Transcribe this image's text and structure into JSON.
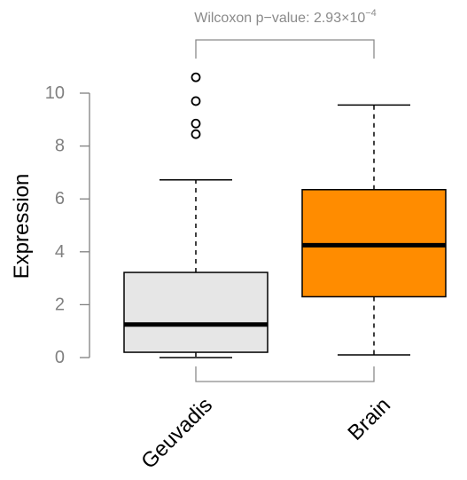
{
  "chart_data": {
    "type": "boxplot",
    "ylabel": "Expression",
    "ylim": [
      0,
      10.6
    ],
    "yticks": [
      0,
      2,
      4,
      6,
      8,
      10
    ],
    "categories": [
      "Geuvadis",
      "Brain"
    ],
    "boxes": [
      {
        "category": "Geuvadis",
        "whisker_low": 0.0,
        "q1": 0.2,
        "median": 1.25,
        "q3": 3.22,
        "whisker_high": 6.72,
        "outliers": [
          8.45,
          8.85,
          9.7,
          10.6
        ],
        "color": "#e6e6e6"
      },
      {
        "category": "Brain",
        "whisker_low": 0.1,
        "q1": 2.3,
        "median": 4.25,
        "q3": 6.35,
        "whisker_high": 9.55,
        "outliers": [],
        "color": "#ff8c00"
      }
    ],
    "annotation": {
      "text_prefix": "Wilcoxon p−value: 2.93",
      "text_times": "×",
      "text_base": "10",
      "text_exponent": "−4"
    }
  }
}
